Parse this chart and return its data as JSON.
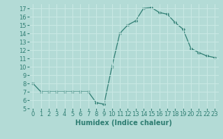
{
  "x": [
    0,
    1,
    2,
    3,
    4,
    5,
    6,
    7,
    8,
    9,
    10,
    11,
    12,
    13,
    14,
    15,
    16,
    17,
    18,
    19,
    20,
    21,
    22,
    23
  ],
  "y": [
    8,
    7,
    7,
    7,
    7,
    7,
    7,
    7,
    5.7,
    5.5,
    10,
    14,
    15,
    15.5,
    17,
    17.1,
    16.5,
    16.3,
    15.3,
    14.5,
    12.2,
    11.7,
    11.3,
    11.1
  ],
  "line_color": "#2e7d72",
  "bg_color": "#b3dbd6",
  "grid_color": "#c8e8e4",
  "xlabel": "Humidex (Indice chaleur)",
  "ylim": [
    5,
    17.5
  ],
  "xlim": [
    -0.5,
    23.5
  ],
  "yticks": [
    5,
    6,
    7,
    8,
    9,
    10,
    11,
    12,
    13,
    14,
    15,
    16,
    17
  ],
  "xticks": [
    0,
    1,
    2,
    3,
    4,
    5,
    6,
    7,
    8,
    9,
    10,
    11,
    12,
    13,
    14,
    15,
    16,
    17,
    18,
    19,
    20,
    21,
    22,
    23
  ],
  "tick_fontsize": 6,
  "xlabel_fontsize": 7
}
